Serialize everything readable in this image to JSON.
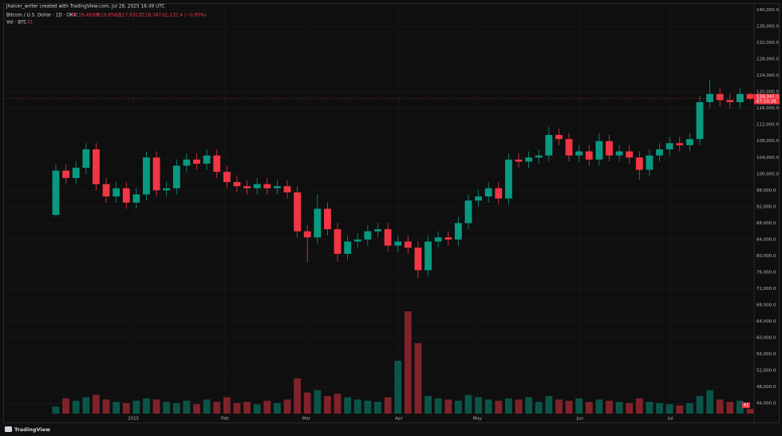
{
  "chart_data": {
    "type": "candlestick",
    "attribution": "jhalver_writer created with TradingView.com, Jul 28, 2025 16:49 UTC",
    "title": "Bitcoin / U.S. Dollar · 1D · OKX",
    "ohlc_labels": [
      "O119,491.9",
      "H119,856.6",
      "L117,932.7",
      "C118,347.1",
      "−1,132.4 (−0.95%)"
    ],
    "volume_title": "Vol · BTC",
    "volume_label": "41",
    "last_price_label": "118,347.1",
    "countdown": "07:10:26",
    "footer": "TradingView",
    "up_color": "#089981",
    "down_color": "#f23645",
    "grid": true,
    "xlim": [
      0,
      69
    ],
    "xticks": [
      {
        "value": 7.7,
        "label": "2025"
      },
      {
        "value": 16.8,
        "label": "Feb"
      },
      {
        "value": 24.9,
        "label": "Mar"
      },
      {
        "value": 34.1,
        "label": "Apr"
      },
      {
        "value": 41.9,
        "label": "May"
      },
      {
        "value": 52.1,
        "label": "Jun"
      },
      {
        "value": 61.1,
        "label": "Jul"
      }
    ],
    "ylim": [
      41500,
      140000
    ],
    "yticks": [
      {
        "value": 44000,
        "label": "44,000.0"
      },
      {
        "value": 48000,
        "label": "48,000.0"
      },
      {
        "value": 52000,
        "label": "52,000.0"
      },
      {
        "value": 56000,
        "label": "56,000.0"
      },
      {
        "value": 60000,
        "label": "60,000.0"
      },
      {
        "value": 64000,
        "label": "64,000.0"
      },
      {
        "value": 68000,
        "label": "68,000.0"
      },
      {
        "value": 72000,
        "label": "72,000.0"
      },
      {
        "value": 76000,
        "label": "76,000.0"
      },
      {
        "value": 80000,
        "label": "80,000.0"
      },
      {
        "value": 84000,
        "label": "84,000.0"
      },
      {
        "value": 88000,
        "label": "88,000.0"
      },
      {
        "value": 92000,
        "label": "92,000.0"
      },
      {
        "value": 96000,
        "label": "96,000.0"
      },
      {
        "value": 100000,
        "label": "100,000.0"
      },
      {
        "value": 104000,
        "label": "104,000.0"
      },
      {
        "value": 108000,
        "label": "108,000.0"
      },
      {
        "value": 112000,
        "label": "112,000.0"
      },
      {
        "value": 116000,
        "label": "116,000.0"
      },
      {
        "value": 120000,
        "label": "120,000.0"
      },
      {
        "value": 124000,
        "label": "124,000.0"
      },
      {
        "value": 128000,
        "label": "128,000.0"
      },
      {
        "value": 132000,
        "label": "132,000.0"
      },
      {
        "value": 136000,
        "label": "136,000.0"
      },
      {
        "value": 140000,
        "label": "140,000.0"
      }
    ],
    "open": [
      90000,
      100800,
      99000,
      101500,
      106000,
      97500,
      94500,
      96500,
      93000,
      95000,
      104000,
      96000,
      96500,
      102000,
      103500,
      102500,
      104500,
      100500,
      98000,
      97000,
      96500,
      97500,
      96500,
      97000,
      95500,
      86000,
      84500,
      91500,
      86500,
      80500,
      83500,
      84000,
      86000,
      86500,
      82500,
      83500,
      82000,
      76500,
      83500,
      84500,
      84000,
      88000,
      93500,
      94500,
      96500,
      94000,
      103500,
      103000,
      104000,
      104500,
      109500,
      108500,
      104500,
      105500,
      103500,
      108000,
      104500,
      105500,
      104000,
      101000,
      104500,
      106000,
      107500,
      107000,
      108500,
      117500,
      119500,
      118000,
      117500,
      119491.9
    ],
    "high": [
      102300,
      102300,
      103000,
      107500,
      107500,
      99000,
      98000,
      98000,
      96500,
      105500,
      105500,
      98000,
      103500,
      105000,
      105000,
      106000,
      106000,
      102000,
      99500,
      98500,
      99000,
      99000,
      98500,
      98500,
      97000,
      87500,
      95000,
      93000,
      88000,
      85000,
      85500,
      87500,
      88000,
      88000,
      85000,
      85000,
      83500,
      85000,
      86000,
      86000,
      89500,
      95000,
      96000,
      98000,
      98000,
      105000,
      105000,
      105500,
      106000,
      111500,
      111000,
      110000,
      107000,
      107000,
      110000,
      109500,
      107000,
      107000,
      105500,
      106000,
      107500,
      109000,
      109000,
      110000,
      119000,
      123000,
      121000,
      119500,
      121000,
      119856.6
    ],
    "low": [
      89500,
      97500,
      97500,
      100000,
      96000,
      93000,
      93000,
      91500,
      91500,
      93500,
      94500,
      94500,
      95000,
      100500,
      101000,
      101000,
      99000,
      96500,
      95500,
      95000,
      95000,
      95000,
      95000,
      94000,
      84500,
      78500,
      83000,
      85000,
      78500,
      79000,
      82000,
      82500,
      84500,
      81000,
      81000,
      80500,
      74500,
      75000,
      82000,
      82500,
      82500,
      86500,
      92000,
      93000,
      92500,
      92500,
      101500,
      101500,
      102500,
      103000,
      107000,
      103000,
      103000,
      102000,
      102000,
      103000,
      103000,
      102500,
      98500,
      99500,
      103000,
      104500,
      105500,
      105500,
      107000,
      116000,
      116500,
      116000,
      116000,
      117932.7
    ],
    "close": [
      100800,
      99000,
      101500,
      106000,
      97500,
      94500,
      96500,
      93000,
      95000,
      104000,
      96000,
      96500,
      102000,
      103500,
      102500,
      104500,
      100500,
      98000,
      97000,
      96500,
      97500,
      96500,
      97000,
      95500,
      86000,
      84500,
      91500,
      86500,
      80500,
      83500,
      84000,
      86000,
      86500,
      82500,
      83500,
      82000,
      76500,
      83500,
      84500,
      84000,
      88000,
      93500,
      94500,
      96500,
      94000,
      103500,
      103000,
      104000,
      104500,
      109500,
      108500,
      104500,
      105500,
      103500,
      108000,
      104500,
      105500,
      104000,
      101000,
      104500,
      106000,
      107500,
      107000,
      108500,
      117500,
      119500,
      118000,
      117500,
      119500,
      118347.1
    ],
    "volume": [
      60,
      130,
      110,
      140,
      160,
      120,
      100,
      90,
      110,
      130,
      120,
      100,
      90,
      110,
      80,
      120,
      100,
      140,
      90,
      100,
      80,
      110,
      90,
      120,
      300,
      180,
      200,
      150,
      170,
      140,
      120,
      110,
      100,
      140,
      450,
      870,
      600,
      150,
      130,
      120,
      110,
      160,
      140,
      120,
      110,
      130,
      120,
      140,
      100,
      150,
      120,
      110,
      130,
      100,
      120,
      110,
      100,
      90,
      130,
      100,
      90,
      80,
      70,
      90,
      150,
      200,
      120,
      100,
      110,
      41
    ]
  }
}
